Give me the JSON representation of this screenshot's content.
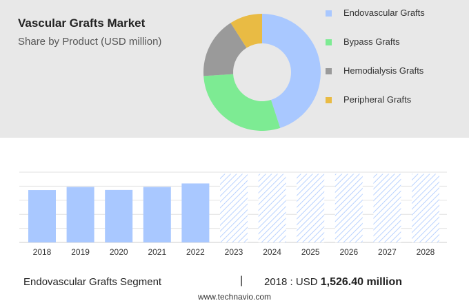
{
  "title": "Vascular Grafts Market",
  "subtitle": "Share by Product (USD million)",
  "legend": [
    {
      "label": "Endovascular Grafts",
      "color": "#a9c8ff"
    },
    {
      "label": "Bypass Grafts",
      "color": "#7deb93"
    },
    {
      "label": "Hemodialysis Grafts",
      "color": "#9a9a9a"
    },
    {
      "label": "Peripheral Grafts",
      "color": "#e9bb44"
    }
  ],
  "chart_data": [
    {
      "type": "pie",
      "title": "Share by Product (USD million)",
      "labels": [
        "Endovascular Grafts",
        "Bypass Grafts",
        "Hemodialysis Grafts",
        "Peripheral Grafts"
      ],
      "values": [
        45,
        29,
        17,
        9
      ],
      "colors": [
        "#a9c8ff",
        "#7deb93",
        "#9a9a9a",
        "#e9bb44"
      ]
    },
    {
      "type": "bar",
      "categories": [
        "2018",
        "2019",
        "2020",
        "2021",
        "2022",
        "2023",
        "2024",
        "2025",
        "2026",
        "2027",
        "2028"
      ],
      "values": [
        1526.4,
        1620,
        1530,
        1620,
        1720,
        2000,
        2000,
        2000,
        2000,
        2000,
        2000
      ],
      "forecast_from": "2023",
      "ylim": [
        0,
        2050
      ],
      "grid": true,
      "bar_color": "#a9c8ff"
    }
  ],
  "footer": {
    "segment": "Endovascular Grafts Segment",
    "separator": "|",
    "year_label": "2018 : USD",
    "value_label": "1,526.40 million"
  },
  "source": "www.technavio.com"
}
